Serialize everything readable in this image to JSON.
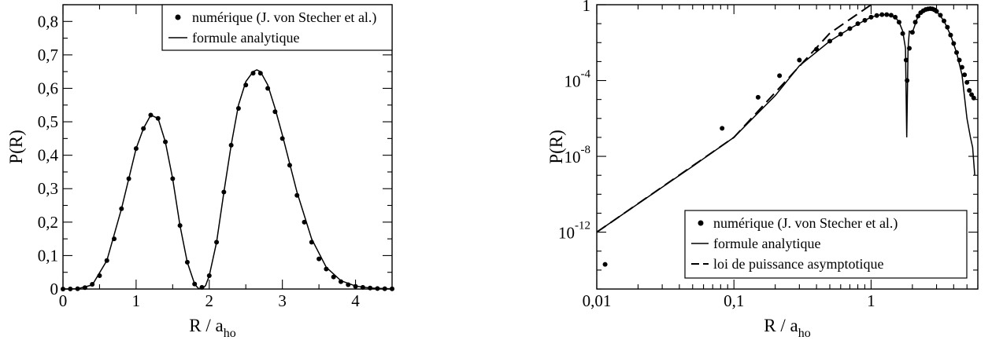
{
  "chart_data": [
    {
      "type": "line",
      "xlabel": "R / a",
      "xlabel_sub": "ho",
      "ylabel": "P(R)",
      "xlim": [
        0,
        4.5
      ],
      "ylim": [
        0,
        0.85
      ],
      "xticks": [
        0,
        1,
        2,
        3,
        4
      ],
      "xtick_labels": [
        "0",
        "1",
        "2",
        "3",
        "4"
      ],
      "yticks": [
        0,
        0.1,
        0.2,
        0.3,
        0.4,
        0.5,
        0.6,
        0.7,
        0.8
      ],
      "ytick_labels": [
        "0",
        "0,1",
        "0,2",
        "0,3",
        "0,4",
        "0,5",
        "0,6",
        "0,7",
        "0,8"
      ],
      "legend_position": "top-right",
      "series": [
        {
          "name": "numérique (J. von Stecher et al.)",
          "style": "dots",
          "x": [
            0,
            0.1,
            0.2,
            0.3,
            0.4,
            0.5,
            0.6,
            0.7,
            0.8,
            0.9,
            1.0,
            1.1,
            1.2,
            1.3,
            1.4,
            1.5,
            1.6,
            1.7,
            1.8,
            1.9,
            2.0,
            2.1,
            2.2,
            2.3,
            2.4,
            2.5,
            2.6,
            2.7,
            2.8,
            2.9,
            3.0,
            3.1,
            3.2,
            3.3,
            3.4,
            3.5,
            3.6,
            3.7,
            3.8,
            3.9,
            4.0,
            4.1,
            4.2,
            4.3,
            4.4,
            4.5
          ],
          "y": [
            0,
            0.0002,
            0.001,
            0.004,
            0.014,
            0.04,
            0.085,
            0.15,
            0.24,
            0.33,
            0.42,
            0.48,
            0.52,
            0.51,
            0.44,
            0.33,
            0.19,
            0.08,
            0.015,
            0.005,
            0.04,
            0.14,
            0.29,
            0.43,
            0.54,
            0.61,
            0.645,
            0.645,
            0.6,
            0.53,
            0.45,
            0.37,
            0.28,
            0.2,
            0.14,
            0.09,
            0.06,
            0.036,
            0.022,
            0.013,
            0.008,
            0.005,
            0.003,
            0.0015,
            0.001,
            0.0005
          ]
        },
        {
          "name": "formule analytique",
          "style": "solid",
          "x": [
            0,
            0.2,
            0.4,
            0.6,
            0.8,
            1.0,
            1.1,
            1.2,
            1.3,
            1.4,
            1.5,
            1.6,
            1.7,
            1.8,
            1.85,
            1.9,
            1.95,
            2.0,
            2.1,
            2.2,
            2.3,
            2.4,
            2.5,
            2.6,
            2.65,
            2.7,
            2.8,
            2.9,
            3.0,
            3.2,
            3.4,
            3.6,
            3.8,
            4.0,
            4.2,
            4.5
          ],
          "y": [
            0,
            0.001,
            0.012,
            0.085,
            0.24,
            0.42,
            0.48,
            0.52,
            0.51,
            0.44,
            0.33,
            0.19,
            0.08,
            0.015,
            0.002,
            0.0,
            0.01,
            0.04,
            0.14,
            0.29,
            0.43,
            0.55,
            0.62,
            0.65,
            0.655,
            0.65,
            0.61,
            0.54,
            0.46,
            0.29,
            0.15,
            0.065,
            0.025,
            0.009,
            0.003,
            0.0005
          ]
        }
      ]
    },
    {
      "type": "line",
      "xlabel": "R / a",
      "xlabel_sub": "ho",
      "ylabel": "P(R)",
      "xscale": "log",
      "yscale": "log",
      "xlim": [
        0.01,
        6
      ],
      "ylim": [
        1e-15,
        1
      ],
      "xticks": [
        0.01,
        0.1,
        1
      ],
      "xtick_labels": [
        "0,01",
        "0,1",
        "1"
      ],
      "yticks": [
        1e-12,
        1e-08,
        0.0001,
        1
      ],
      "ytick_labels": [
        {
          "base": "10",
          "exp": "-12"
        },
        {
          "base": "10",
          "exp": "-8"
        },
        {
          "base": "10",
          "exp": "-4"
        },
        {
          "base": "1",
          "exp": ""
        }
      ],
      "legend_position": "bottom-right",
      "series": [
        {
          "name": "numérique (J. von Stecher et al.)",
          "style": "dots",
          "x": [
            0.0115,
            0.082,
            0.15,
            0.215,
            0.3,
            0.4,
            0.5,
            0.6,
            0.7,
            0.8,
            0.9,
            1.0,
            1.1,
            1.2,
            1.3,
            1.4,
            1.5,
            1.6,
            1.7,
            1.8,
            1.83,
            1.9,
            2.0,
            2.1,
            2.2,
            2.3,
            2.4,
            2.5,
            2.6,
            2.7,
            2.8,
            2.9,
            3.0,
            3.2,
            3.4,
            3.6,
            3.8,
            4.0,
            4.2,
            4.4,
            4.6,
            4.8,
            5.0,
            5.2,
            5.4,
            5.6
          ],
          "y": [
            2e-14,
            3e-07,
            1.3e-05,
            0.00018,
            0.0012,
            0.0045,
            0.012,
            0.028,
            0.055,
            0.1,
            0.15,
            0.22,
            0.27,
            0.3,
            0.3,
            0.28,
            0.22,
            0.12,
            0.03,
            0.0012,
            0.0001,
            0.005,
            0.035,
            0.12,
            0.25,
            0.38,
            0.48,
            0.56,
            0.6,
            0.62,
            0.6,
            0.54,
            0.45,
            0.28,
            0.14,
            0.065,
            0.025,
            0.009,
            0.003,
            0.0012,
            0.0005,
            0.0002,
            8e-05,
            3e-05,
            1.8e-05,
            1.2e-05
          ]
        },
        {
          "name": "formule analytique",
          "style": "solid",
          "x": [
            0.01,
            0.05,
            0.1,
            0.2,
            0.3,
            0.5,
            0.7,
            0.9,
            1.0,
            1.1,
            1.2,
            1.3,
            1.4,
            1.5,
            1.6,
            1.7,
            1.78,
            1.82,
            1.86,
            1.9,
            2.0,
            2.2,
            2.4,
            2.6,
            2.7,
            2.8,
            3.0,
            3.4,
            3.8,
            4.2,
            4.6,
            5.0,
            5.3,
            5.5,
            5.7
          ],
          "y": [
            1e-12,
            3e-09,
            1e-07,
            1.6e-05,
            0.0006,
            0.012,
            0.055,
            0.15,
            0.22,
            0.27,
            0.3,
            0.3,
            0.28,
            0.22,
            0.12,
            0.04,
            0.005,
            1e-07,
            0.005,
            0.04,
            0.035,
            0.25,
            0.48,
            0.6,
            0.62,
            0.6,
            0.45,
            0.14,
            0.025,
            0.003,
            0.0002,
            1e-06,
            1e-07,
            3e-08,
            1e-09
          ]
        },
        {
          "name": "loi de puissance asymptotique",
          "style": "dashed",
          "x": [
            0.01,
            0.1,
            0.5,
            1.0
          ],
          "y": [
            1e-12,
            1e-07,
            0.0312,
            1
          ]
        }
      ]
    }
  ]
}
